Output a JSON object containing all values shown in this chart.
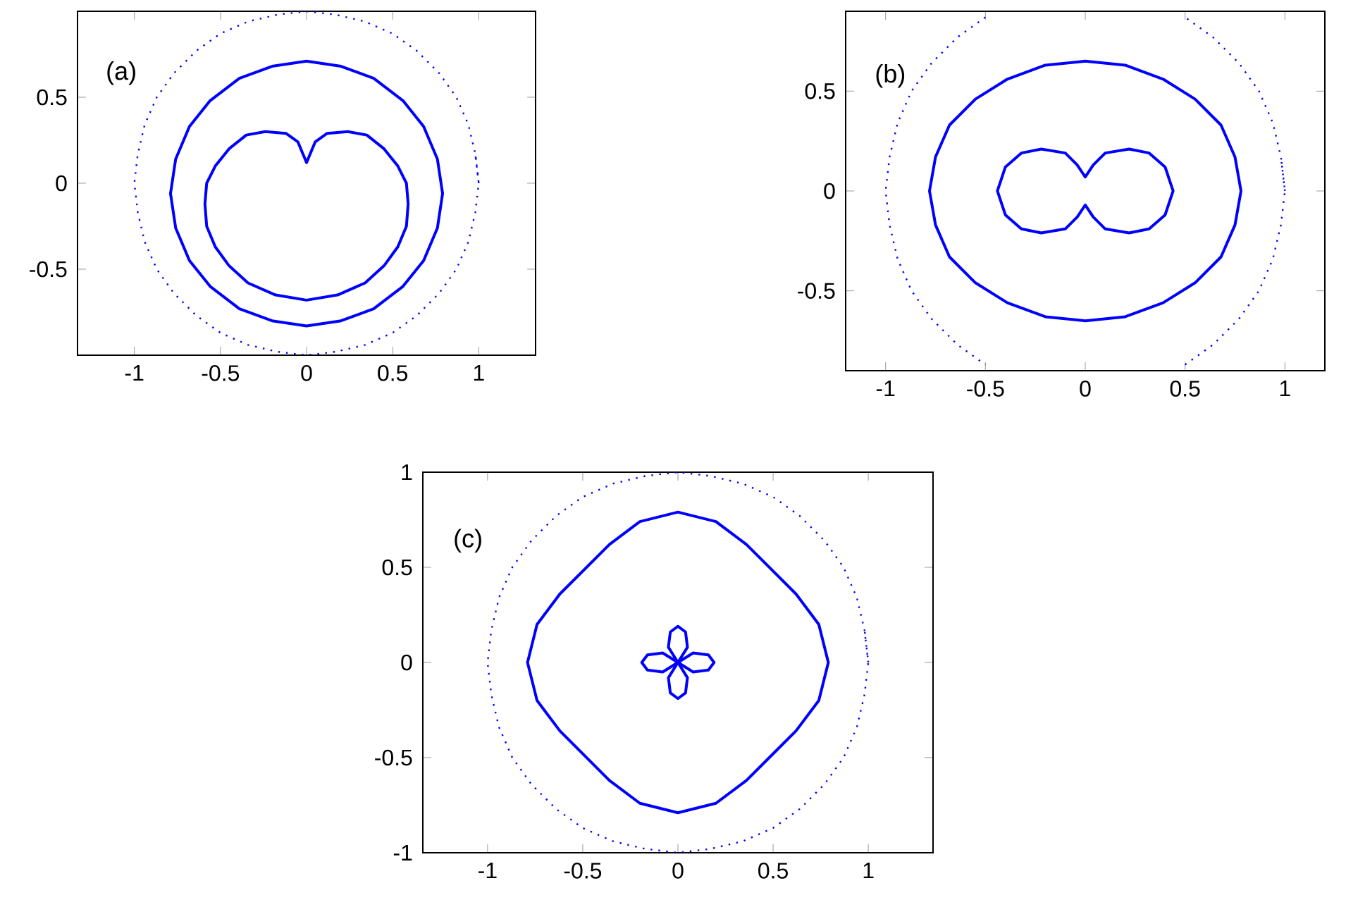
{
  "chart_data": [
    {
      "type": "line",
      "annotations": [
        "(a)"
      ],
      "xlim": [
        -1.33,
        1.33
      ],
      "ylim": [
        -1,
        1
      ],
      "xticks": [
        -1,
        -0.5,
        0,
        0.5,
        1
      ],
      "yticks": [
        -0.5,
        0,
        0.5
      ],
      "marker": "none",
      "grid": false,
      "series": [
        {
          "color": "#0000ff",
          "line_style": "dotted",
          "x": [
            1,
            0.98,
            0.94,
            0.87,
            0.77,
            0.64,
            0.5,
            0.34,
            0.17,
            0,
            -0.17,
            -0.34,
            -0.5,
            -0.64,
            -0.77,
            -0.87,
            -0.94,
            -0.98,
            -1,
            -0.98,
            -0.94,
            -0.87,
            -0.77,
            -0.64,
            -0.5,
            -0.34,
            -0.17,
            0,
            0.17,
            0.34,
            0.5,
            0.64,
            0.77,
            0.87,
            0.94,
            0.98,
            1,
            0.98
          ],
          "values": [
            0,
            0.17,
            0.34,
            0.5,
            0.64,
            0.77,
            0.87,
            0.94,
            0.98,
            1,
            0.98,
            0.94,
            0.87,
            0.77,
            0.64,
            0.5,
            0.34,
            0.17,
            0,
            -0.17,
            -0.34,
            -0.5,
            -0.64,
            -0.77,
            -0.87,
            -0.94,
            -0.98,
            -1,
            -0.98,
            -0.94,
            -0.87,
            -0.77,
            -0.64,
            -0.5,
            -0.34,
            -0.17,
            0,
            0.17
          ]
        },
        {
          "color": "#0000ff",
          "line_style": "solid",
          "x": [
            0.79,
            0.76,
            0.68,
            0.56,
            0.39,
            0.2,
            0,
            -0.2,
            -0.39,
            -0.56,
            -0.68,
            -0.76,
            -0.79,
            -0.76,
            -0.68,
            -0.56,
            -0.39,
            -0.2,
            0,
            0.2,
            0.39,
            0.56,
            0.68,
            0.76,
            0.79,
            0.76
          ],
          "values": [
            -0.06,
            0.14,
            0.33,
            0.48,
            0.61,
            0.68,
            0.71,
            0.68,
            0.61,
            0.48,
            0.33,
            0.14,
            -0.06,
            -0.26,
            -0.45,
            -0.6,
            -0.73,
            -0.8,
            -0.83,
            -0.8,
            -0.73,
            -0.6,
            -0.45,
            -0.26,
            -0.06,
            0.14
          ]
        },
        {
          "color": "#0000ff",
          "line_style": "solid",
          "x": [
            0,
            0.05,
            0.12,
            0.24,
            0.35,
            0.45,
            0.53,
            0.58,
            0.59,
            0.58,
            0.53,
            0.45,
            0.34,
            0.18,
            0,
            -0.18,
            -0.34,
            -0.45,
            -0.53,
            -0.58,
            -0.59,
            -0.58,
            -0.53,
            -0.45,
            -0.35,
            -0.24,
            -0.12,
            -0.05,
            0,
            0.05
          ],
          "values": [
            0.12,
            0.24,
            0.29,
            0.3,
            0.28,
            0.2,
            0.1,
            0,
            -0.12,
            -0.25,
            -0.37,
            -0.48,
            -0.58,
            -0.65,
            -0.68,
            -0.65,
            -0.58,
            -0.48,
            -0.37,
            -0.25,
            -0.12,
            0,
            0.1,
            0.2,
            0.28,
            0.3,
            0.29,
            0.24,
            0.12,
            0.24
          ]
        }
      ]
    },
    {
      "type": "line",
      "annotations": [
        "(b)"
      ],
      "xlim": [
        -1.2,
        1.2
      ],
      "ylim": [
        -0.9,
        0.9
      ],
      "xticks": [
        -1,
        -0.5,
        0,
        0.5,
        1
      ],
      "yticks": [
        -0.5,
        0,
        0.5
      ],
      "marker": "none",
      "grid": false,
      "series": [
        {
          "color": "#0000ff",
          "line_style": "dotted",
          "x": [
            1,
            0.98,
            0.94,
            0.87,
            0.77,
            0.64,
            0.5,
            0.34,
            0.17,
            0,
            -0.17,
            -0.34,
            -0.5,
            -0.64,
            -0.77,
            -0.87,
            -0.94,
            -0.98,
            -1,
            -0.98,
            -0.94,
            -0.87,
            -0.77,
            -0.64,
            -0.5,
            -0.34,
            -0.17,
            0,
            0.17,
            0.34,
            0.5,
            0.64,
            0.77,
            0.87,
            0.94,
            0.98,
            1,
            0.98
          ],
          "values": [
            0,
            0.17,
            0.34,
            0.5,
            0.64,
            0.77,
            0.87,
            null,
            null,
            null,
            null,
            null,
            0.87,
            0.77,
            0.64,
            0.5,
            0.34,
            0.17,
            0,
            -0.17,
            -0.34,
            -0.5,
            -0.64,
            -0.77,
            -0.87,
            null,
            null,
            null,
            null,
            null,
            -0.87,
            -0.77,
            -0.64,
            -0.5,
            -0.34,
            -0.17,
            0,
            0.17
          ]
        },
        {
          "color": "#0000ff",
          "line_style": "solid",
          "x": [
            0.78,
            0.75,
            0.68,
            0.55,
            0.39,
            0.2,
            0,
            -0.2,
            -0.39,
            -0.55,
            -0.68,
            -0.75,
            -0.78,
            -0.75,
            -0.68,
            -0.55,
            -0.39,
            -0.2,
            0,
            0.2,
            0.39,
            0.55,
            0.68,
            0.75,
            0.78,
            0.75
          ],
          "values": [
            0,
            0.17,
            0.33,
            0.46,
            0.56,
            0.63,
            0.65,
            0.63,
            0.56,
            0.46,
            0.33,
            0.17,
            0,
            -0.17,
            -0.33,
            -0.46,
            -0.56,
            -0.63,
            -0.65,
            -0.63,
            -0.56,
            -0.46,
            -0.33,
            -0.17,
            0,
            0.17
          ]
        },
        {
          "color": "#0000ff",
          "line_style": "solid",
          "x": [
            0,
            0.04,
            0.1,
            0.22,
            0.32,
            0.4,
            0.44,
            0.4,
            0.32,
            0.22,
            0.1,
            0.04,
            0,
            -0.04,
            -0.1,
            -0.22,
            -0.32,
            -0.4,
            -0.44,
            -0.4,
            -0.32,
            -0.22,
            -0.1,
            -0.04,
            0,
            0.04
          ],
          "values": [
            0.07,
            0.13,
            0.19,
            0.21,
            0.19,
            0.12,
            0,
            -0.12,
            -0.19,
            -0.21,
            -0.19,
            -0.13,
            -0.07,
            -0.13,
            -0.19,
            -0.21,
            -0.19,
            -0.12,
            0,
            0.12,
            0.19,
            0.21,
            0.19,
            0.13,
            0.07,
            0.13
          ]
        }
      ]
    },
    {
      "type": "line",
      "annotations": [
        "(c)"
      ],
      "xlim": [
        -1.34,
        1.34
      ],
      "ylim": [
        -1,
        1
      ],
      "xticks": [
        -1,
        -0.5,
        0,
        0.5,
        1
      ],
      "yticks": [
        -1,
        -0.5,
        0,
        0.5,
        1
      ],
      "marker": "none",
      "grid": false,
      "series": [
        {
          "color": "#0000ff",
          "line_style": "dotted",
          "x": [
            1,
            0.98,
            0.94,
            0.87,
            0.77,
            0.64,
            0.5,
            0.34,
            0.17,
            0,
            -0.17,
            -0.34,
            -0.5,
            -0.64,
            -0.77,
            -0.87,
            -0.94,
            -0.98,
            -1,
            -0.98,
            -0.94,
            -0.87,
            -0.77,
            -0.64,
            -0.5,
            -0.34,
            -0.17,
            0,
            0.17,
            0.34,
            0.5,
            0.64,
            0.77,
            0.87,
            0.94,
            0.98,
            1,
            0.98
          ],
          "values": [
            0,
            0.17,
            0.34,
            0.5,
            0.64,
            0.77,
            0.87,
            0.94,
            0.98,
            1,
            0.98,
            0.94,
            0.87,
            0.77,
            0.64,
            0.5,
            0.34,
            0.17,
            0,
            -0.17,
            -0.34,
            -0.5,
            -0.64,
            -0.77,
            -0.87,
            -0.94,
            -0.98,
            -1,
            -0.98,
            -0.94,
            -0.87,
            -0.77,
            -0.64,
            -0.5,
            -0.34,
            -0.17,
            0,
            0.17
          ]
        },
        {
          "color": "#0000ff",
          "line_style": "solid",
          "x": [
            0.79,
            0.74,
            0.62,
            0.49,
            0.36,
            0.2,
            0,
            -0.2,
            -0.36,
            -0.49,
            -0.62,
            -0.74,
            -0.79,
            -0.74,
            -0.62,
            -0.49,
            -0.36,
            -0.2,
            0,
            0.2,
            0.36,
            0.49,
            0.62,
            0.74,
            0.79,
            0.74
          ],
          "values": [
            0,
            0.2,
            0.36,
            0.49,
            0.62,
            0.74,
            0.79,
            0.74,
            0.62,
            0.49,
            0.36,
            0.2,
            0,
            -0.2,
            -0.36,
            -0.49,
            -0.62,
            -0.74,
            -0.79,
            -0.74,
            -0.62,
            -0.49,
            -0.36,
            -0.2,
            0,
            0.2
          ]
        },
        {
          "color": "#0000ff",
          "line_style": "solid",
          "x": [
            0,
            0.08,
            0.16,
            0.19,
            0.16,
            0.08,
            0,
            0.05,
            0.04,
            0,
            -0.04,
            -0.05,
            0,
            -0.08,
            -0.16,
            -0.19,
            -0.16,
            -0.08,
            0,
            -0.05,
            -0.04,
            0,
            0.04,
            0.05,
            0,
            0.08
          ],
          "values": [
            0,
            -0.05,
            -0.04,
            0,
            0.04,
            0.05,
            0,
            0.08,
            0.16,
            0.19,
            0.16,
            0.08,
            0,
            0.05,
            0.04,
            0,
            -0.04,
            -0.05,
            0,
            -0.08,
            -0.16,
            -0.19,
            -0.16,
            -0.08,
            0,
            -0.05
          ]
        }
      ]
    }
  ]
}
